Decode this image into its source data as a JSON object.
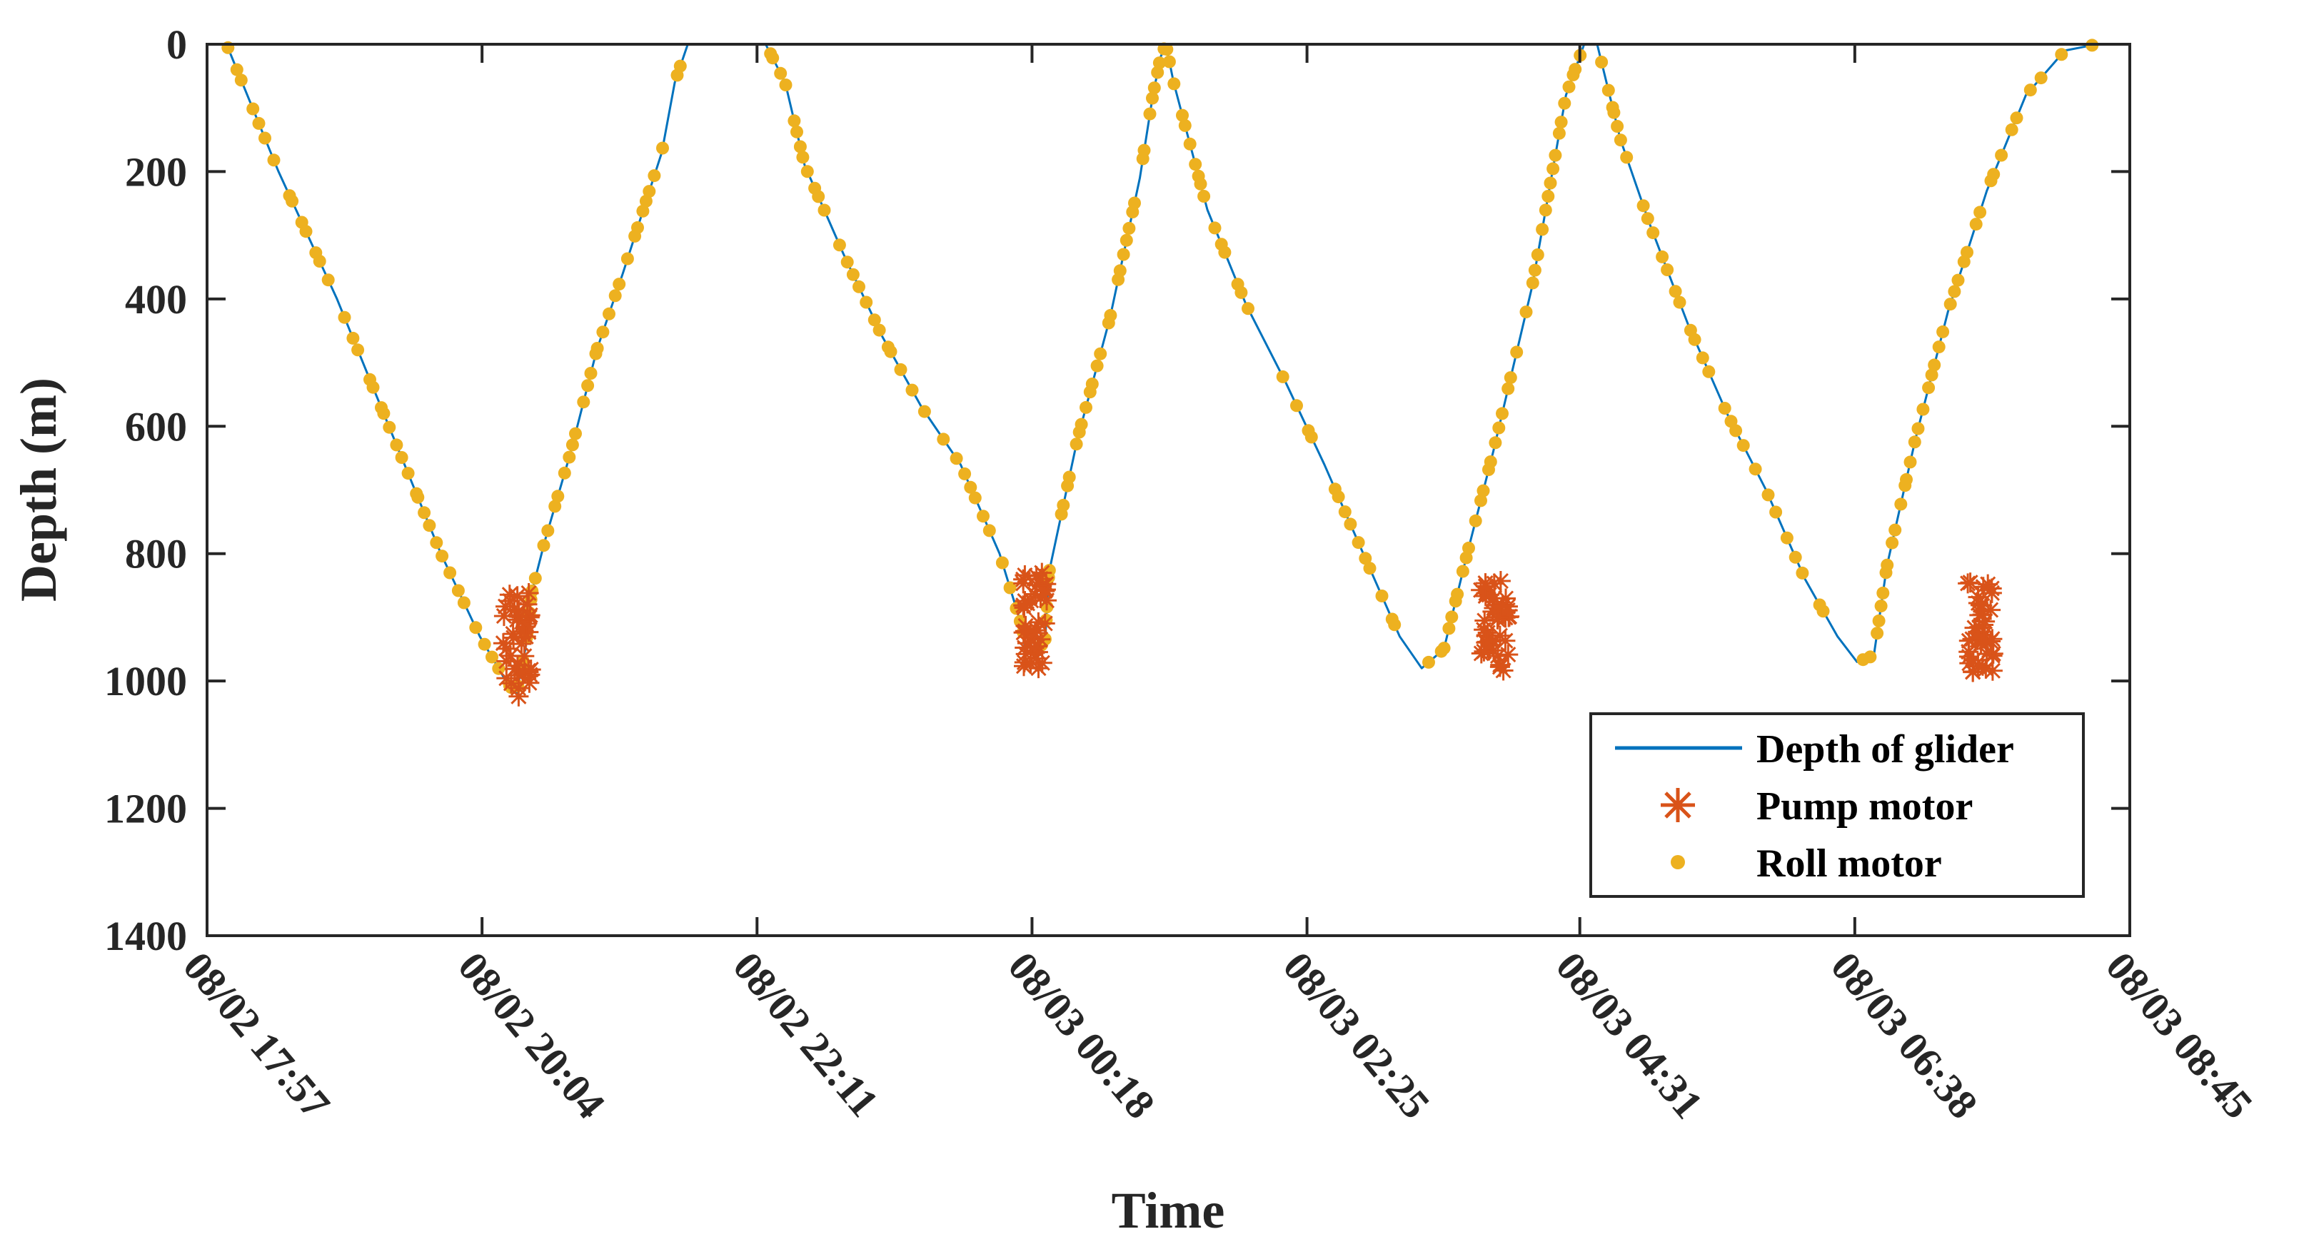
{
  "chart_data": {
    "type": "line",
    "title": "",
    "xlabel": "Time",
    "ylabel": "Depth (m)",
    "x_unit": "hours since 08/02 17:57",
    "xlim": [
      0,
      14.8
    ],
    "ylim": [
      0,
      1400
    ],
    "y_reversed": true,
    "y_ticks": [
      0,
      200,
      400,
      600,
      800,
      1000,
      1200,
      1400
    ],
    "y_tick_labels": [
      "0",
      "200",
      "400",
      "600",
      "800",
      "1000",
      "1200",
      "1400"
    ],
    "x_ticks": [
      0,
      2.1167,
      4.2333,
      6.35,
      8.4667,
      10.5667,
      12.6833,
      14.8
    ],
    "x_tick_labels": [
      "08/02 17:57",
      "08/02 20:04",
      "08/02 22:11",
      "08/03 00:18",
      "08/03 02:25",
      "08/03 04:31",
      "08/03 06:38",
      "08/03 08:45"
    ],
    "grid": false,
    "legend_position": "bottom-right",
    "colors": {
      "depth": "#0072BD",
      "pump": "#D95319",
      "roll": "#EDB120",
      "axes": "#262626"
    },
    "series": [
      {
        "name": "Depth of glider",
        "style": "line",
        "x": [
          0,
          0.15,
          0.55,
          1.0,
          1.4,
          1.8,
          2.1,
          2.3,
          2.38,
          2.45,
          2.5,
          2.6,
          2.8,
          3.0,
          3.2,
          3.5,
          3.6,
          3.7,
          4.0,
          4.2,
          4.3,
          4.45,
          4.6,
          4.9,
          5.2,
          5.5,
          5.8,
          6.1,
          6.28,
          6.3,
          6.45,
          6.48,
          6.7,
          6.95,
          7.18,
          7.28,
          7.34,
          7.38,
          7.44,
          7.7,
          8.0,
          8.3,
          8.6,
          8.9,
          9.18,
          9.35,
          9.52,
          9.7,
          9.9,
          10.2,
          10.46,
          10.6,
          10.7,
          10.88,
          11.1,
          11.4,
          11.7,
          12.0,
          12.3,
          12.55,
          12.7,
          12.83,
          12.93,
          13.15,
          13.4,
          13.7,
          14.0,
          14.3,
          14.55,
          14.8
        ],
        "y": [
          0,
          0,
          200,
          400,
          600,
          800,
          930,
          1000,
          1020,
          950,
          860,
          780,
          640,
          480,
          360,
          170,
          60,
          0,
          0,
          0,
          0,
          60,
          190,
          330,
          460,
          570,
          660,
          800,
          920,
          960,
          940,
          830,
          620,
          430,
          210,
          80,
          20,
          0,
          60,
          260,
          410,
          530,
          660,
          800,
          930,
          980,
          950,
          800,
          640,
          380,
          80,
          0,
          0,
          150,
          280,
          440,
          580,
          700,
          840,
          930,
          970,
          960,
          820,
          620,
          420,
          230,
          80,
          10,
          0,
          0
        ]
      },
      {
        "name": "Pump motor",
        "style": "asterisk",
        "clusters": [
          {
            "x_range": [
              2.28,
              2.5
            ],
            "y_range": [
              860,
              1030
            ]
          },
          {
            "x_range": [
              6.28,
              6.48
            ],
            "y_range": [
              830,
              990
            ]
          },
          {
            "x_range": [
              9.8,
              10.03
            ],
            "y_range": [
              840,
              990
            ]
          },
          {
            "x_range": [
              13.55,
              13.75
            ],
            "y_range": [
              840,
              990
            ]
          }
        ]
      },
      {
        "name": "Roll motor",
        "style": "dot",
        "note": "dense markers along descent and ascent legs of depth profile"
      }
    ],
    "legend": [
      "Depth of glider",
      "Pump motor",
      "Roll motor"
    ]
  }
}
